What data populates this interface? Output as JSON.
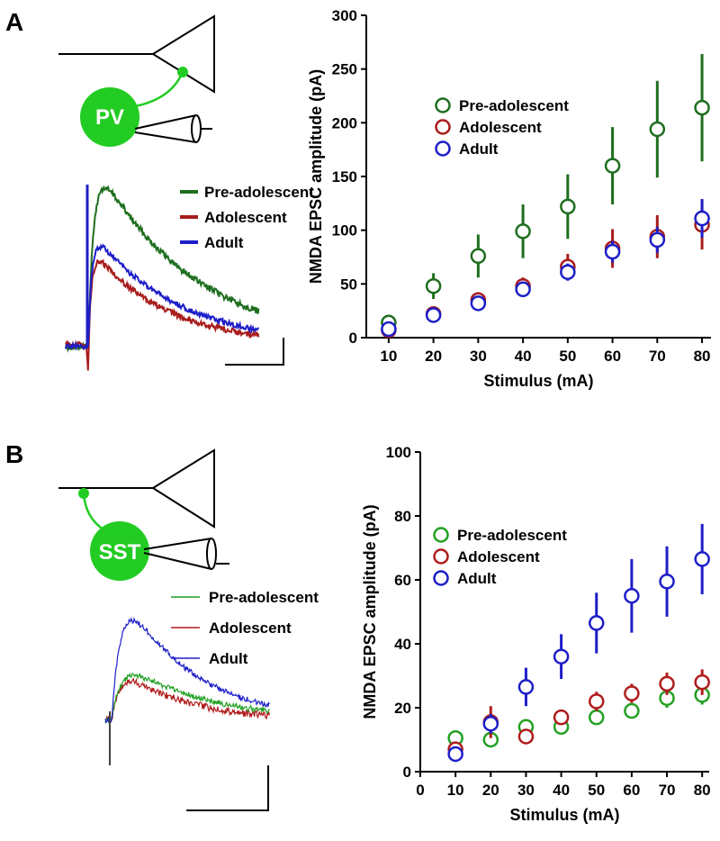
{
  "panels": [
    {
      "label": "A",
      "cell": "PV"
    },
    {
      "label": "B",
      "cell": "SST"
    }
  ],
  "chart_data": [
    {
      "type": "scatter",
      "xlabel": "Stimulus (mA)",
      "ylabel": "NMDA EPSC amplitude (pA)",
      "x": [
        10,
        20,
        30,
        40,
        50,
        60,
        70,
        80
      ],
      "xlim": [
        5,
        82
      ],
      "xticks": [
        10,
        20,
        30,
        40,
        50,
        60,
        70,
        80
      ],
      "ylim": [
        0,
        300
      ],
      "yticks": [
        0,
        50,
        100,
        150,
        200,
        250,
        300
      ],
      "series": [
        {
          "name": "Pre-adolescent",
          "color": "#1e6e1e",
          "values": [
            14,
            48,
            76,
            99,
            122,
            160,
            194,
            214
          ],
          "errors": [
            3,
            12,
            20,
            25,
            30,
            36,
            45,
            50
          ]
        },
        {
          "name": "Adolescent",
          "color": "#a81c1c",
          "values": [
            7,
            22,
            35,
            48,
            66,
            83,
            94,
            105
          ],
          "errors": [
            2,
            3,
            4,
            8,
            12,
            18,
            20,
            23
          ]
        },
        {
          "name": "Adult",
          "color": "#1e1ec8",
          "values": [
            8,
            21,
            32,
            45,
            61,
            80,
            91,
            111
          ],
          "errors": [
            2,
            3,
            4,
            5,
            8,
            10,
            12,
            18
          ]
        }
      ]
    },
    {
      "type": "scatter",
      "xlabel": "Stimulus (mA)",
      "ylabel": "NMDA EPSC amplitude (pA)",
      "x": [
        10,
        20,
        30,
        40,
        50,
        60,
        70,
        80
      ],
      "xlim": [
        0,
        82
      ],
      "xticks": [
        0,
        10,
        20,
        30,
        40,
        50,
        60,
        70,
        80
      ],
      "ylim": [
        0,
        100
      ],
      "yticks": [
        0,
        20,
        40,
        60,
        80,
        100
      ],
      "series": [
        {
          "name": "Pre-adolescent",
          "color": "#22a022",
          "values": [
            10.5,
            10,
            14,
            14,
            17,
            19,
            23,
            24
          ],
          "errors": [
            1,
            1,
            1,
            1,
            1.5,
            2,
            3,
            3
          ]
        },
        {
          "name": "Adolescent",
          "color": "#b01c1c",
          "values": [
            7,
            15.5,
            11,
            17,
            22,
            24.5,
            27.5,
            28
          ],
          "errors": [
            1,
            5,
            1.5,
            2,
            3,
            3,
            3.5,
            4
          ]
        },
        {
          "name": "Adult",
          "color": "#1e1ec8",
          "values": [
            5.5,
            15,
            26.5,
            36,
            46.5,
            55,
            59.5,
            66.5
          ],
          "errors": [
            1,
            3,
            6,
            7,
            9.5,
            11.5,
            11,
            11
          ]
        }
      ]
    }
  ]
}
